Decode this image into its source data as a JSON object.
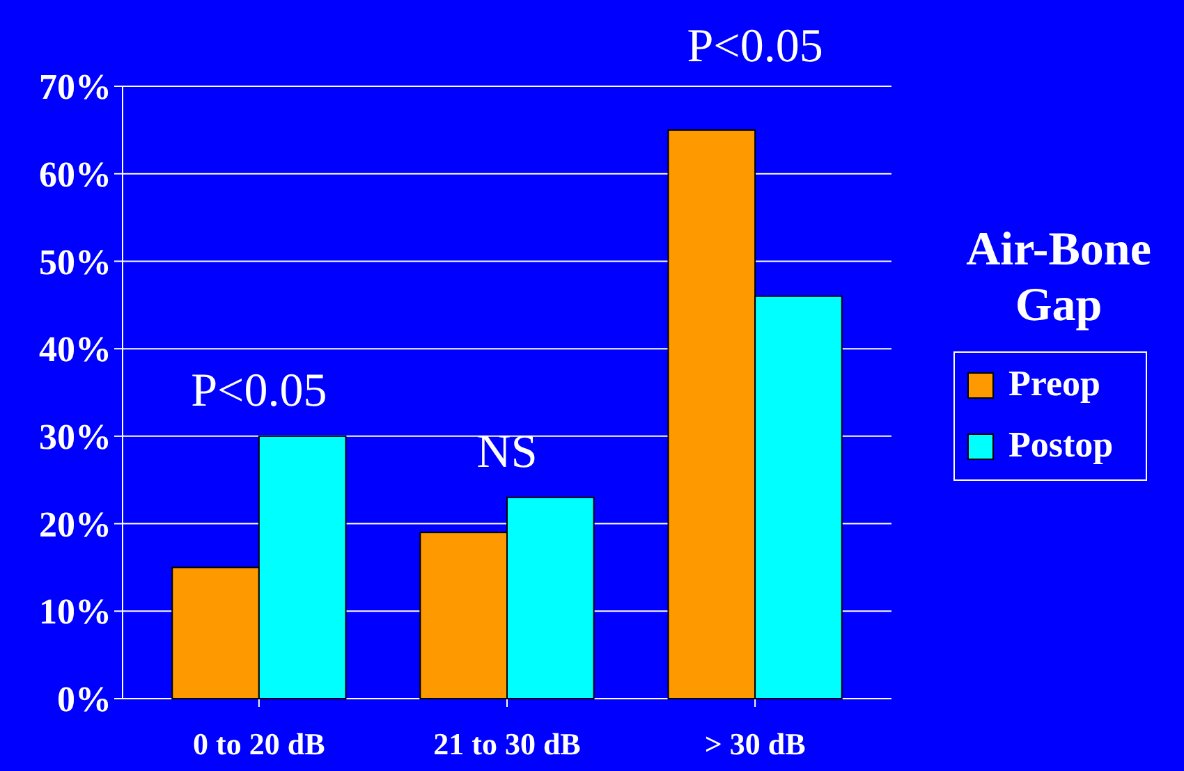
{
  "chart_data": {
    "type": "bar",
    "categories": [
      "0 to 20 dB",
      "21 to 30 dB",
      "> 30 dB"
    ],
    "series": [
      {
        "name": "Preop",
        "color": "#ff9900",
        "values": [
          15,
          19,
          65
        ]
      },
      {
        "name": "Postop",
        "color": "#00ffff",
        "values": [
          30,
          23,
          46
        ]
      }
    ],
    "ylim": [
      0,
      70
    ],
    "yticks": [
      {
        "value": 0,
        "label": "0%"
      },
      {
        "value": 10,
        "label": "10%"
      },
      {
        "value": 20,
        "label": "20%"
      },
      {
        "value": 30,
        "label": "30%"
      },
      {
        "value": 40,
        "label": "40%"
      },
      {
        "value": 50,
        "label": "50%"
      },
      {
        "value": 60,
        "label": "60%"
      },
      {
        "value": 70,
        "label": "70%"
      }
    ],
    "grid": "y",
    "legend": "right",
    "legend_title": "Air-Bone Gap",
    "annotations": [
      "P<0.05",
      "NS",
      "P<0.05"
    ]
  }
}
